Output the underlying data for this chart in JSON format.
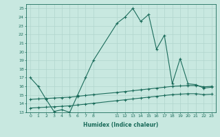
{
  "xlabel": "Humidex (Indice chaleur)",
  "ylabel": "",
  "bg_color": "#c8e8e0",
  "grid_color": "#b0d4cc",
  "line_color": "#1a6b5a",
  "xlim": [
    -0.5,
    23.5
  ],
  "ylim": [
    13,
    25.5
  ],
  "xticks": [
    0,
    1,
    2,
    3,
    4,
    5,
    6,
    7,
    8,
    11,
    12,
    13,
    14,
    15,
    16,
    17,
    18,
    19,
    20,
    21,
    22,
    23
  ],
  "yticks": [
    13,
    14,
    15,
    16,
    17,
    18,
    19,
    20,
    21,
    22,
    23,
    24,
    25
  ],
  "series1_x": [
    0,
    1,
    2,
    3,
    4,
    5,
    6,
    7,
    8,
    11,
    12,
    13,
    14,
    15,
    16,
    17,
    18,
    19,
    20,
    21,
    22,
    23
  ],
  "series1_y": [
    17.0,
    16.0,
    14.5,
    13.1,
    13.3,
    13.0,
    15.0,
    17.0,
    19.0,
    23.3,
    24.0,
    25.0,
    23.5,
    24.3,
    20.3,
    21.9,
    16.3,
    19.2,
    16.3,
    16.2,
    15.8,
    15.9
  ],
  "series2_x": [
    0,
    1,
    2,
    3,
    4,
    5,
    6,
    7,
    8,
    11,
    12,
    13,
    14,
    15,
    16,
    17,
    18,
    19,
    20,
    21,
    22,
    23
  ],
  "series2_y": [
    14.5,
    14.55,
    14.6,
    14.65,
    14.7,
    14.75,
    14.85,
    14.95,
    15.05,
    15.3,
    15.4,
    15.5,
    15.6,
    15.7,
    15.8,
    15.9,
    16.0,
    16.05,
    16.1,
    16.1,
    15.95,
    16.0
  ],
  "series3_x": [
    0,
    1,
    2,
    3,
    4,
    5,
    6,
    7,
    8,
    11,
    12,
    13,
    14,
    15,
    16,
    17,
    18,
    19,
    20,
    21,
    22,
    23
  ],
  "series3_y": [
    13.5,
    13.55,
    13.6,
    13.65,
    13.7,
    13.75,
    13.85,
    13.95,
    14.05,
    14.35,
    14.45,
    14.55,
    14.65,
    14.75,
    14.85,
    14.95,
    15.05,
    15.1,
    15.15,
    15.15,
    15.05,
    15.1
  ]
}
